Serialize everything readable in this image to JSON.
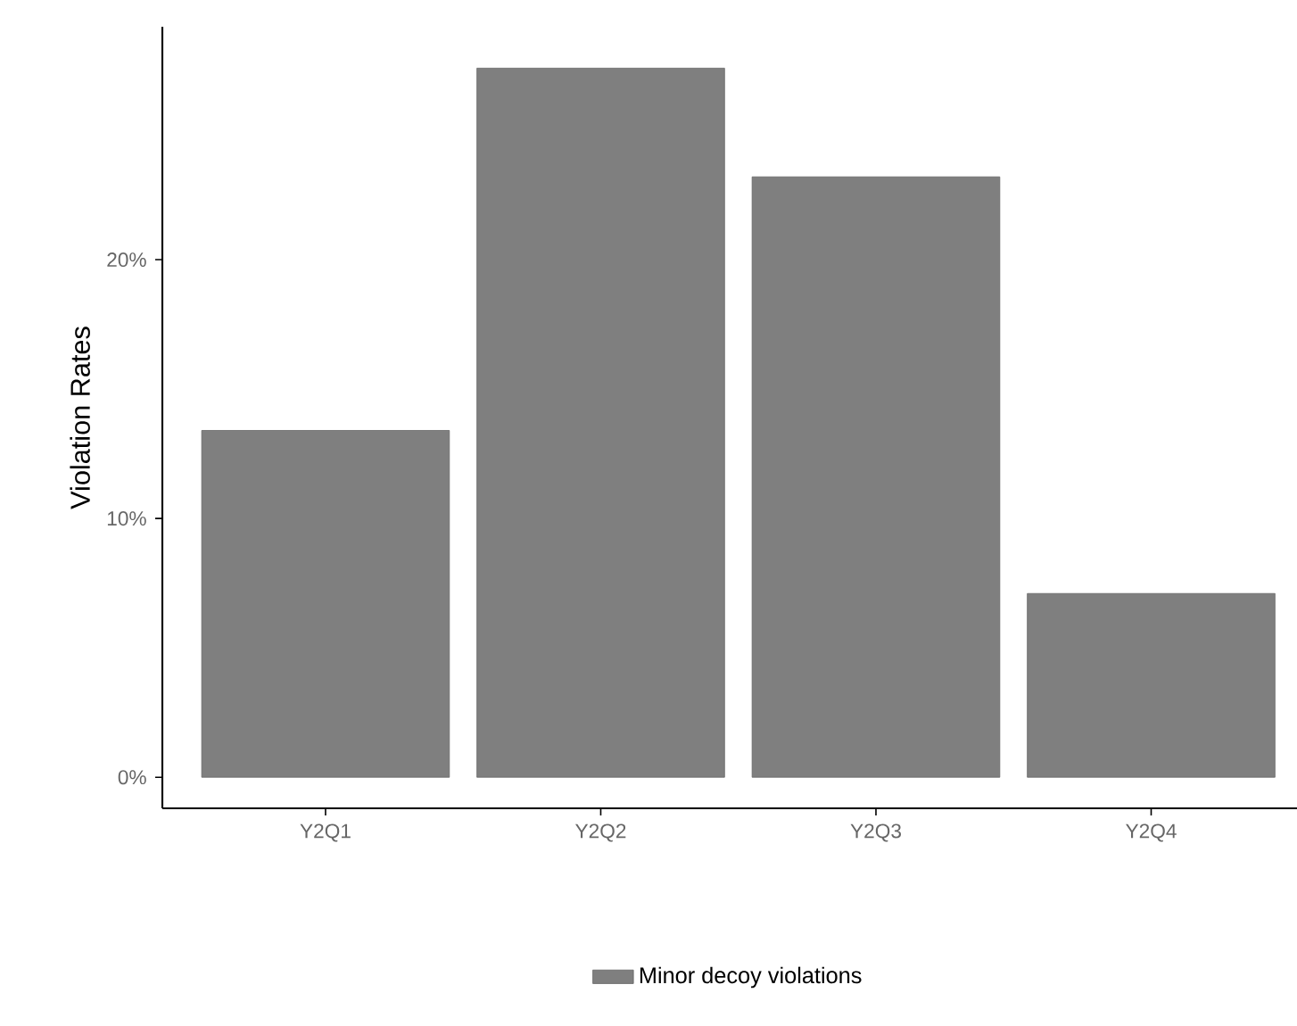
{
  "chart_data": {
    "type": "bar",
    "ylabel": "Violation Rates",
    "categories": [
      "Y2Q1",
      "Y2Q2",
      "Y2Q3",
      "Y2Q4"
    ],
    "series": [
      {
        "name": "Minor decoy violations",
        "color": "#7f7f7f",
        "values": [
          13.4,
          27.4,
          23.2,
          7.1
        ]
      }
    ],
    "ylim": [
      -1.2,
      29
    ],
    "yticks": [
      {
        "value": 0,
        "label": "0%"
      },
      {
        "value": 10,
        "label": "10%"
      },
      {
        "value": 20,
        "label": "20%"
      }
    ],
    "grid": false,
    "legend": "bottom"
  }
}
